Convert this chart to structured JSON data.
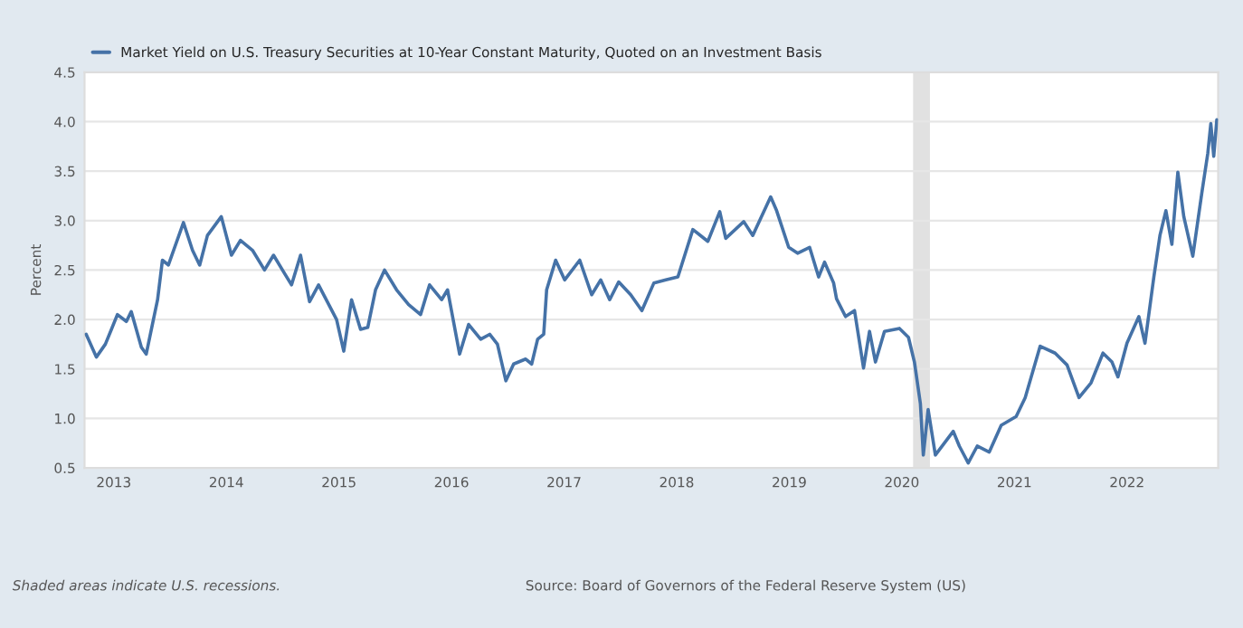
{
  "chart_data": {
    "type": "line",
    "x": [
      2012.755,
      2012.845,
      2012.925,
      2012.979,
      2013.032,
      2013.112,
      2013.155,
      2013.245,
      2013.288,
      2013.352,
      2013.389,
      2013.432,
      2013.485,
      2013.619,
      2013.699,
      2013.763,
      2013.832,
      2013.955,
      2014.045,
      2014.125,
      2014.232,
      2014.339,
      2014.419,
      2014.525,
      2014.579,
      2014.659,
      2014.739,
      2014.819,
      2014.979,
      2015.043,
      2015.112,
      2015.192,
      2015.256,
      2015.325,
      2015.405,
      2015.512,
      2015.619,
      2015.725,
      2015.805,
      2015.912,
      2015.965,
      2016.072,
      2016.152,
      2016.259,
      2016.339,
      2016.408,
      2016.483,
      2016.552,
      2016.659,
      2016.712,
      2016.765,
      2016.819,
      2016.845,
      2016.925,
      2017.005,
      2017.139,
      2017.245,
      2017.325,
      2017.405,
      2017.485,
      2017.592,
      2017.691,
      2017.798,
      2017.904,
      2018.011,
      2018.144,
      2018.277,
      2018.383,
      2018.436,
      2018.596,
      2018.676,
      2018.835,
      2018.888,
      2018.995,
      2019.074,
      2019.181,
      2019.261,
      2019.314,
      2019.394,
      2019.42,
      2019.5,
      2019.58,
      2019.66,
      2019.713,
      2019.766,
      2019.846,
      2019.979,
      2020.059,
      2020.112,
      2020.165,
      2020.191,
      2020.234,
      2020.298,
      2020.457,
      2020.511,
      2020.59,
      2020.67,
      2020.777,
      2020.883,
      2021.016,
      2021.096,
      2021.229,
      2021.362,
      2021.468,
      2021.574,
      2021.681,
      2021.787,
      2021.867,
      2021.92,
      2022.0,
      2022.106,
      2022.16,
      2022.239,
      2022.293,
      2022.346,
      2022.399,
      2022.452,
      2022.505,
      2022.585,
      2022.665,
      2022.718,
      2022.745,
      2022.771,
      2022.798
    ],
    "series": [
      {
        "name": "Market Yield on U.S. Treasury Securities at 10-Year Constant Maturity, Quoted on an Investment Basis",
        "color": "#4572a7",
        "values": [
          1.85,
          1.62,
          1.75,
          1.9,
          2.05,
          1.98,
          2.08,
          1.72,
          1.65,
          2.0,
          2.2,
          2.6,
          2.55,
          2.98,
          2.7,
          2.55,
          2.85,
          3.04,
          2.65,
          2.8,
          2.7,
          2.5,
          2.65,
          2.45,
          2.35,
          2.65,
          2.18,
          2.35,
          2.0,
          1.68,
          2.2,
          1.9,
          1.92,
          2.3,
          2.5,
          2.3,
          2.15,
          2.05,
          2.35,
          2.2,
          2.3,
          1.65,
          1.95,
          1.8,
          1.85,
          1.75,
          1.38,
          1.55,
          1.6,
          1.55,
          1.8,
          1.85,
          2.3,
          2.6,
          2.4,
          2.6,
          2.25,
          2.4,
          2.2,
          2.38,
          2.25,
          2.09,
          2.37,
          2.4,
          2.43,
          2.91,
          2.79,
          3.09,
          2.82,
          2.99,
          2.85,
          3.24,
          3.1,
          2.73,
          2.67,
          2.73,
          2.43,
          2.58,
          2.37,
          2.21,
          2.03,
          2.09,
          1.51,
          1.88,
          1.57,
          1.88,
          1.91,
          1.82,
          1.57,
          1.15,
          0.63,
          1.09,
          0.63,
          0.87,
          0.72,
          0.55,
          0.72,
          0.66,
          0.93,
          1.02,
          1.21,
          1.73,
          1.66,
          1.54,
          1.21,
          1.36,
          1.66,
          1.57,
          1.42,
          1.76,
          2.03,
          1.76,
          2.43,
          2.85,
          3.1,
          2.76,
          3.49,
          3.04,
          2.64,
          3.28,
          3.68,
          3.98,
          3.65,
          4.02
        ]
      }
    ],
    "ylabel": "Percent",
    "xlim": [
      2012.74,
      2022.81
    ],
    "xticks": [
      2013,
      2014,
      2015,
      2016,
      2017,
      2018,
      2019,
      2020,
      2021,
      2022
    ],
    "ylim": [
      0.5,
      4.5
    ],
    "yticks": [
      0.5,
      {
        "value": 1,
        "label": "1.0"
      },
      1.5,
      {
        "value": 2,
        "label": "2.0"
      },
      2.5,
      {
        "value": 3,
        "label": "3.0"
      },
      3.5,
      {
        "value": 4,
        "label": "4.0"
      },
      4.5
    ],
    "bands": [
      {
        "axis": "x",
        "from": 2020.1,
        "to": 2020.25,
        "color": "#e1e1e1"
      }
    ],
    "grid": "y",
    "legend": "top",
    "marker": "none",
    "line_style": "solid",
    "annotations": [
      "Shaded areas indicate U.S. recessions.",
      "Source: Board of Governors of the Federal Reserve System (US)"
    ]
  }
}
